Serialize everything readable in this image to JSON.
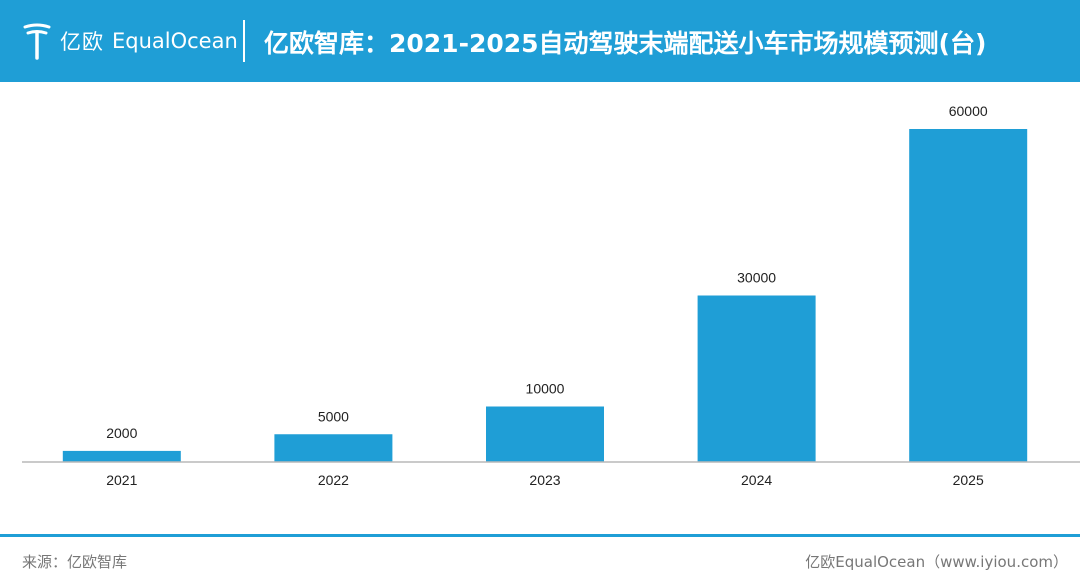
{
  "header": {
    "logo_cn": "亿欧",
    "logo_en": "EqualOcean",
    "title": "亿欧智库：2021-2025自动驾驶末端配送小车市场规模预测(台)",
    "background": "#1f9ed6"
  },
  "chart_data": {
    "type": "bar",
    "title": "亿欧智库：2021-2025自动驾驶末端配送小车市场规模预测(台)",
    "categories": [
      "2021",
      "2022",
      "2023",
      "2024",
      "2025"
    ],
    "values": [
      2000,
      5000,
      10000,
      30000,
      60000
    ],
    "xlabel": "",
    "ylabel": "",
    "ylim": [
      0,
      60000
    ],
    "grid": false,
    "legend": "none",
    "bar_color": "#1f9ed6",
    "data_labels": [
      "2000",
      "5000",
      "10000",
      "30000",
      "60000"
    ]
  },
  "footer": {
    "source": "来源：亿欧智库",
    "credit": "亿欧EqualOcean（www.iyiou.com）"
  }
}
